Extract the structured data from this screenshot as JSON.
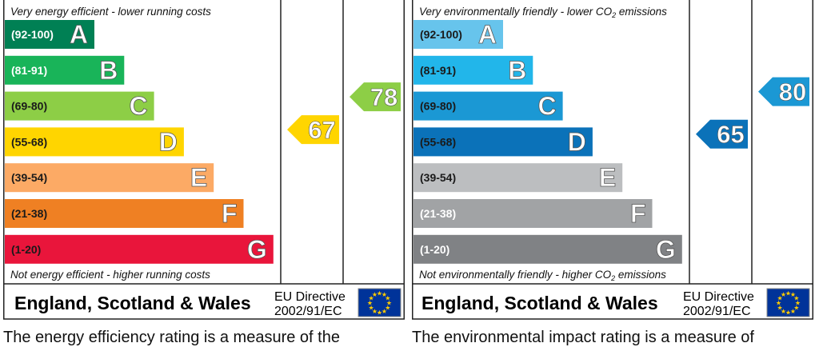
{
  "chart_data": [
    {
      "type": "bar",
      "top_caption": "Very energy efficient - lower running costs",
      "bottom_caption": "Not energy efficient - higher running costs",
      "country": "England, Scotland & Wales",
      "directive_line1": "EU Directive",
      "directive_line2": "2002/91/EC",
      "footer_text": "The energy efficiency rating is a measure of the",
      "bands": [
        {
          "range": "(92-100)",
          "letter": "A",
          "color": "#008054",
          "range_color": "#ffffff"
        },
        {
          "range": "(81-91)",
          "letter": "B",
          "color": "#19b459",
          "range_color": "#ffffff"
        },
        {
          "range": "(69-80)",
          "letter": "C",
          "color": "#8dce46",
          "range_color": "#1a1a1a"
        },
        {
          "range": "(55-68)",
          "letter": "D",
          "color": "#ffd500",
          "range_color": "#1a1a1a"
        },
        {
          "range": "(39-54)",
          "letter": "E",
          "color": "#fcaa65",
          "range_color": "#1a1a1a"
        },
        {
          "range": "(21-38)",
          "letter": "F",
          "color": "#ef8023",
          "range_color": "#1a1a1a"
        },
        {
          "range": "(1-20)",
          "letter": "G",
          "color": "#e9153b",
          "range_color": "#1a1a1a"
        }
      ],
      "current": {
        "value": 67,
        "color": "#ffd500"
      },
      "potential": {
        "value": 78,
        "color": "#8dce46"
      }
    },
    {
      "type": "bar",
      "top_caption_main": "Very environmentally friendly - lower CO",
      "top_caption_sub": "2",
      "top_caption_end": " emissions",
      "bottom_caption_main": "Not environmentally friendly - higher CO",
      "bottom_caption_sub": "2",
      "bottom_caption_end": " emissions",
      "country": "England, Scotland & Wales",
      "directive_line1": "EU Directive",
      "directive_line2": "2002/91/EC",
      "footer_text": "The environmental impact rating is a measure of",
      "bands": [
        {
          "range": "(92-100)",
          "letter": "A",
          "color": "#67c4ec",
          "range_color": "#1a1a1a"
        },
        {
          "range": "(81-91)",
          "letter": "B",
          "color": "#22b6ea",
          "range_color": "#1a1a1a"
        },
        {
          "range": "(69-80)",
          "letter": "C",
          "color": "#1b98d4",
          "range_color": "#1a1a1a"
        },
        {
          "range": "(55-68)",
          "letter": "D",
          "color": "#0b72b9",
          "range_color": "#1a1a1a"
        },
        {
          "range": "(39-54)",
          "letter": "E",
          "color": "#bcbec0",
          "range_color": "#1a1a1a"
        },
        {
          "range": "(21-38)",
          "letter": "F",
          "color": "#a1a3a5",
          "range_color": "#ffffff"
        },
        {
          "range": "(1-20)",
          "letter": "G",
          "color": "#808285",
          "range_color": "#ffffff"
        }
      ],
      "current": {
        "value": 65,
        "color": "#0b72b9"
      },
      "potential": {
        "value": 80,
        "color": "#1b98d4"
      }
    }
  ]
}
